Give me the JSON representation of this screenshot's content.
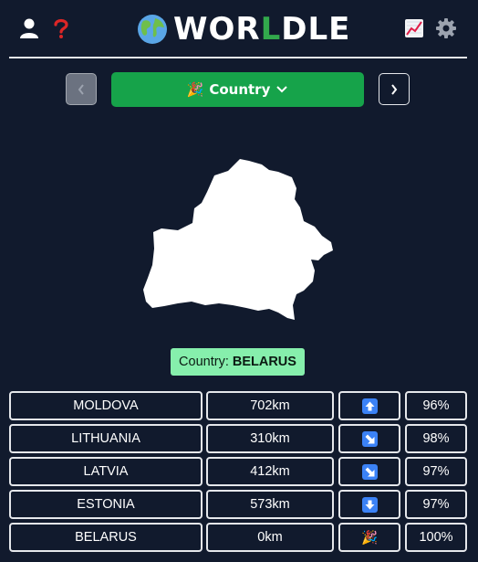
{
  "header": {
    "title_prefix": "WOR",
    "title_highlight": "L",
    "title_suffix": "DLE",
    "icons": [
      "user-icon",
      "help-icon",
      "globe-icon",
      "stats-icon",
      "settings-icon"
    ]
  },
  "mode": {
    "label": "Country",
    "emoji": "🎉"
  },
  "answer": {
    "label": "Country:",
    "value": "BELARUS"
  },
  "guesses": [
    {
      "country": "MOLDOVA",
      "distance": "702km",
      "direction": "up",
      "proximity": "96%"
    },
    {
      "country": "LITHUANIA",
      "distance": "310km",
      "direction": "down-right",
      "proximity": "98%"
    },
    {
      "country": "LATVIA",
      "distance": "412km",
      "direction": "down-right",
      "proximity": "97%"
    },
    {
      "country": "ESTONIA",
      "distance": "573km",
      "direction": "down",
      "proximity": "97%"
    },
    {
      "country": "BELARUS",
      "distance": "0km",
      "direction": "correct",
      "proximity": "100%"
    }
  ],
  "colors": {
    "background": "#111a2d",
    "accent_green": "#16a34a",
    "answer_bg": "#86efac",
    "arrow_blue": "#3b82f6",
    "help_red": "#dc2626"
  }
}
